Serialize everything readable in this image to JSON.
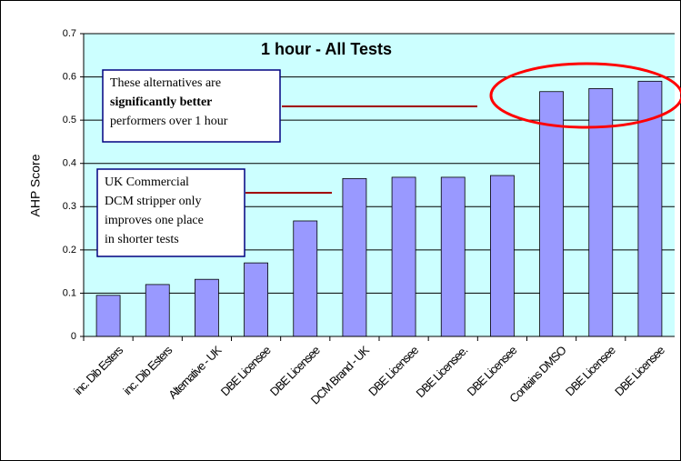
{
  "chart_data": {
    "type": "bar",
    "title": "1 hour - All Tests",
    "ylabel": "AHP Score",
    "categories": [
      "inc. Dib Esters",
      "inc. Dib Esters",
      "Alternative - UK",
      "DBE Licensee",
      "DBE Licensee",
      "DCM Brand - UK",
      "DBE Licensee",
      "DBE Licensee.",
      "DBE Licensee",
      "Contains DMSO",
      "DBE Licensee",
      "DBE Licensee"
    ],
    "values": [
      0.095,
      0.12,
      0.132,
      0.17,
      0.267,
      0.365,
      0.368,
      0.368,
      0.372,
      0.566,
      0.573,
      0.59
    ],
    "color": "#9999ff",
    "ylim": [
      0,
      0.7
    ],
    "yticks": [
      0,
      0.1,
      0.2,
      0.3,
      0.4,
      0.5,
      0.6,
      0.7
    ],
    "grid": true,
    "annotations": [
      {
        "lines": [
          "These alternatives are",
          "significantly better",
          "performers over 1 hour"
        ]
      },
      {
        "lines": [
          "UK Commercial",
          "DCM stripper only",
          "improves one place",
          "in shorter tests"
        ]
      }
    ]
  }
}
